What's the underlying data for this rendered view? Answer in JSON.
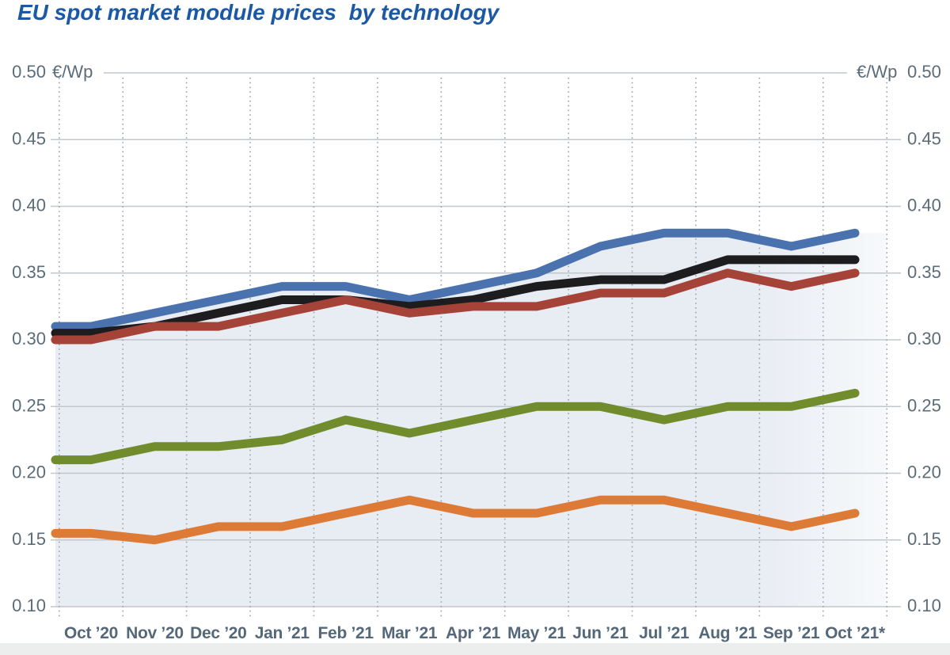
{
  "chart_data": {
    "type": "line",
    "title": "EU spot market module prices  by technology",
    "x_labels": [
      "Oct ’20",
      "Nov ’20",
      "Dec ’20",
      "Jan ’21",
      "Feb ’21",
      "Mar ’21",
      "Apr ’21",
      "May ’21",
      "Jun ’21",
      "Jul ’21",
      "Aug ’21",
      "Sep ’21",
      "Oct ’21*"
    ],
    "y_axis": {
      "unit": "€/Wp",
      "ticks": [
        "0.50",
        "0.45",
        "0.40",
        "0.35",
        "0.30",
        "0.25",
        "0.20",
        "0.15",
        "0.10"
      ],
      "lim": [
        0.1,
        0.5
      ],
      "step": 0.05,
      "shown_on": "both-sides"
    },
    "grid": {
      "horizontal": "solid",
      "vertical": "dotted"
    },
    "legend": "none",
    "series": [
      {
        "name": "blue",
        "color": "#4a72ae",
        "values": [
          0.31,
          0.32,
          0.33,
          0.34,
          0.34,
          0.33,
          0.34,
          0.35,
          0.37,
          0.38,
          0.38,
          0.37,
          0.38
        ]
      },
      {
        "name": "black",
        "color": "#1d1d1f",
        "values": [
          0.305,
          0.31,
          0.32,
          0.33,
          0.33,
          0.325,
          0.33,
          0.34,
          0.345,
          0.345,
          0.36,
          0.36,
          0.36
        ]
      },
      {
        "name": "red",
        "color": "#a64338",
        "values": [
          0.3,
          0.31,
          0.31,
          0.32,
          0.33,
          0.32,
          0.325,
          0.325,
          0.335,
          0.335,
          0.35,
          0.34,
          0.35
        ]
      },
      {
        "name": "green",
        "color": "#708c2d",
        "values": [
          0.21,
          0.22,
          0.22,
          0.225,
          0.24,
          0.23,
          0.24,
          0.25,
          0.25,
          0.24,
          0.25,
          0.25,
          0.26
        ]
      },
      {
        "name": "orange",
        "color": "#dd7b36",
        "values": [
          0.155,
          0.15,
          0.16,
          0.16,
          0.17,
          0.18,
          0.17,
          0.17,
          0.18,
          0.18,
          0.17,
          0.16,
          0.17
        ]
      }
    ],
    "area_fill": {
      "under_series": "blue",
      "color": "#e8ecf3"
    },
    "colors": {
      "title": "#1b59a5",
      "axis_text": "#5b6c79",
      "x_label_text": "#54687a",
      "gridline": "#c2c7cc",
      "dotted_line": "#99a3ab"
    }
  }
}
